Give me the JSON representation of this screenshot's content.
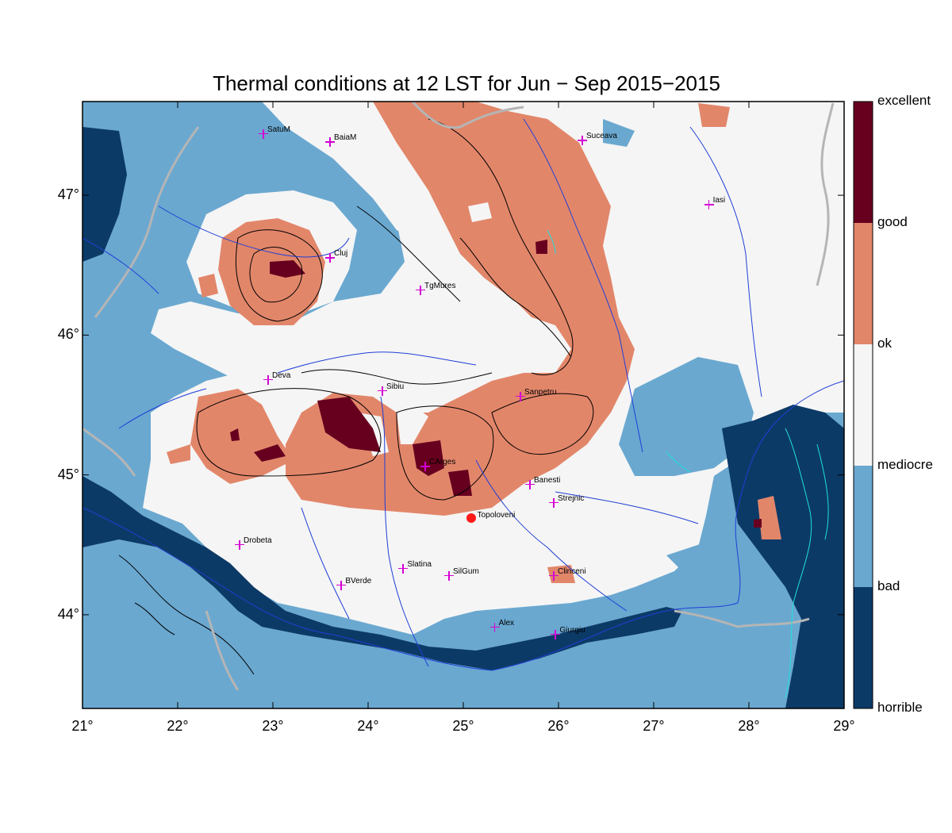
{
  "title": "Thermal conditions at 12 LST for Jun − Sep  2015−2015",
  "colorbar": {
    "classes": [
      {
        "label": "excellent",
        "color": "#67001f"
      },
      {
        "label": "good",
        "color": "#e2866a"
      },
      {
        "label": "ok",
        "color": "#f5f5f5"
      },
      {
        "label": "mediocre",
        "color": "#6aa8d0"
      },
      {
        "label": "bad",
        "color": "#0c3a67"
      },
      {
        "label": "horrible",
        "color": ""
      }
    ]
  },
  "axes": {
    "lon_min": 21,
    "lon_max": 29,
    "lat_min": 43.33,
    "lat_max": 47.67,
    "lon_ticks": [
      "21°",
      "22°",
      "23°",
      "24°",
      "25°",
      "26°",
      "27°",
      "28°",
      "29°"
    ],
    "lat_ticks": [
      "44°",
      "45°",
      "46°",
      "47°"
    ]
  },
  "cities": [
    {
      "name": "SatuM",
      "lon": 22.9,
      "lat": 47.44
    },
    {
      "name": "BaiaM",
      "lon": 23.6,
      "lat": 47.38
    },
    {
      "name": "Suceava",
      "lon": 26.25,
      "lat": 47.39
    },
    {
      "name": "Iasi",
      "lon": 27.58,
      "lat": 46.93
    },
    {
      "name": "Cluj",
      "lon": 23.6,
      "lat": 46.55
    },
    {
      "name": "TgMures",
      "lon": 24.55,
      "lat": 46.32
    },
    {
      "name": "Deva",
      "lon": 22.95,
      "lat": 45.68
    },
    {
      "name": "Sibiu",
      "lon": 24.15,
      "lat": 45.6
    },
    {
      "name": "Sanpetru",
      "lon": 25.6,
      "lat": 45.56
    },
    {
      "name": "CArges",
      "lon": 24.6,
      "lat": 45.06
    },
    {
      "name": "Banesti",
      "lon": 25.7,
      "lat": 44.93
    },
    {
      "name": "Strejnic",
      "lon": 25.95,
      "lat": 44.8
    },
    {
      "name": "Drobeta",
      "lon": 22.65,
      "lat": 44.5
    },
    {
      "name": "Slatina",
      "lon": 24.37,
      "lat": 44.33
    },
    {
      "name": "SilGum",
      "lon": 24.85,
      "lat": 44.28
    },
    {
      "name": "Clinceni",
      "lon": 25.95,
      "lat": 44.28
    },
    {
      "name": "BVerde",
      "lon": 23.72,
      "lat": 44.21
    },
    {
      "name": "Alex",
      "lon": 25.33,
      "lat": 43.91
    },
    {
      "name": "Giurgiu",
      "lon": 25.97,
      "lat": 43.86
    }
  ],
  "highlight": {
    "name": "Topoloveni",
    "lon": 25.08,
    "lat": 44.69,
    "color": "#ff1a1a"
  }
}
